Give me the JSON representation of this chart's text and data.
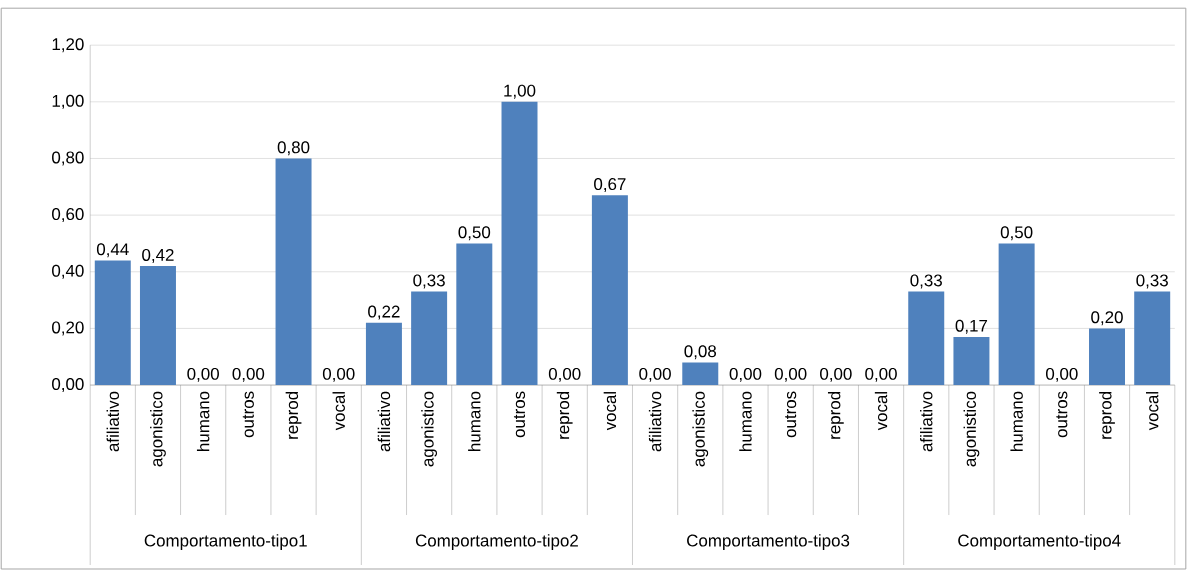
{
  "chart_data": {
    "type": "bar",
    "categories": [
      "afiliativo",
      "agonistico",
      "humano",
      "outros",
      "reprod",
      "vocal",
      "afiliativo",
      "agonistico",
      "humano",
      "outros",
      "reprod",
      "vocal",
      "afiliativo",
      "agonistico",
      "humano",
      "outros",
      "reprod",
      "vocal",
      "afiliativo",
      "agonistico",
      "humano",
      "outros",
      "reprod",
      "vocal"
    ],
    "values": [
      0.44,
      0.42,
      0,
      0,
      0.8,
      0,
      0.22,
      0.33,
      0.5,
      1.0,
      0,
      0.67,
      0,
      0.08,
      0,
      0,
      0,
      0,
      0.33,
      0.17,
      0.5,
      0,
      0.2,
      0.33
    ],
    "value_labels": [
      "0,44",
      "0,42",
      "0,00",
      "0,00",
      "0,80",
      "0,00",
      "0,22",
      "0,33",
      "0,50",
      "1,00",
      "0,00",
      "0,67",
      "0,00",
      "0,08",
      "0,00",
      "0,00",
      "0,00",
      "0,00",
      "0,33",
      "0,17",
      "0,50",
      "0,00",
      "0,20",
      "0,33"
    ],
    "color": "#4f81bd",
    "ylim": [
      0,
      1.2
    ],
    "yticks": [
      {
        "value": 0,
        "label": "0,00"
      },
      {
        "value": 0.2,
        "label": "0,20"
      },
      {
        "value": 0.4,
        "label": "0,40"
      },
      {
        "value": 0.6,
        "label": "0,60"
      },
      {
        "value": 0.8,
        "label": "0,80"
      },
      {
        "value": 1.0,
        "label": "1,00"
      },
      {
        "value": 1.2,
        "label": "1,20"
      }
    ],
    "grid": "y",
    "annotations": [
      "Comportamento-tipo1",
      "Comportamento-tipo2",
      "Comportamento-tipo3",
      "Comportamento-tipo4"
    ]
  }
}
